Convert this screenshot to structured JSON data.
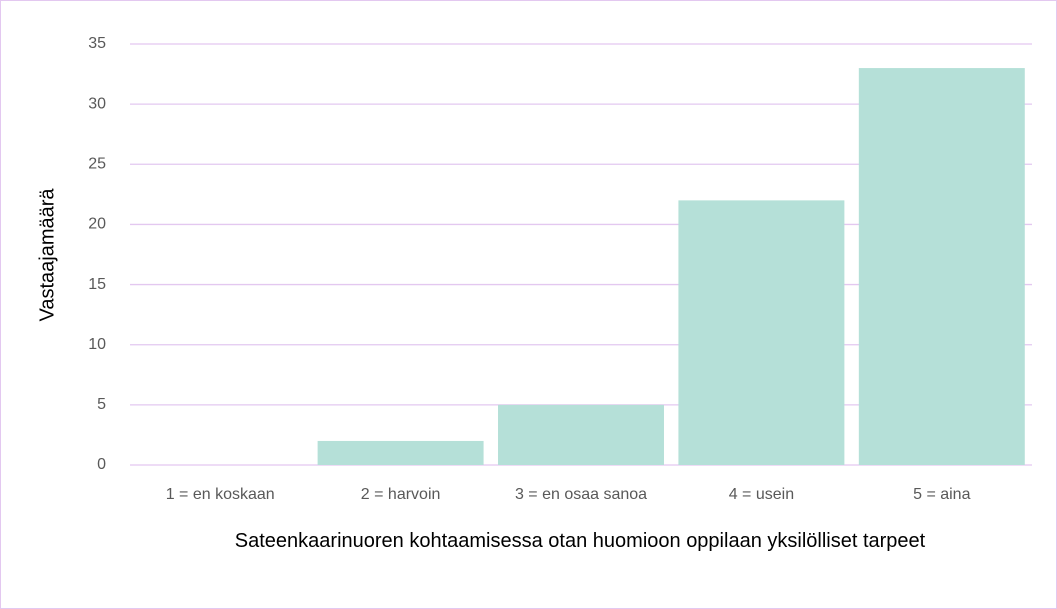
{
  "chart_data": {
    "type": "bar",
    "categories": [
      "1 = en koskaan",
      "2 = harvoin",
      "3 = en osaa sanoa",
      "4 = usein",
      "5 = aina"
    ],
    "values": [
      0,
      2,
      5,
      22,
      33
    ],
    "color": "#b5e0d8",
    "ylim": [
      0,
      35
    ],
    "yticks": [
      0,
      5,
      10,
      15,
      20,
      25,
      30,
      35
    ],
    "grid": true,
    "y_label": "Vastaajamäärä",
    "x_label": "Sateenkaarinuoren kohtaamisessa otan huomioon oppilaan yksilölliset tarpeet"
  }
}
